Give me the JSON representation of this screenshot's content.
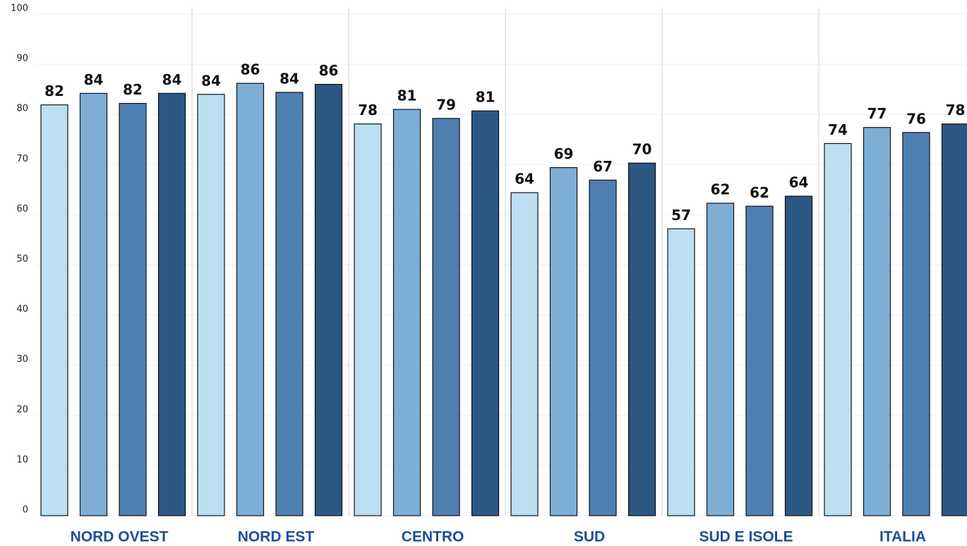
{
  "chart_data": {
    "type": "bar",
    "categories": [
      "NORD OVEST",
      "NORD EST",
      "CENTRO",
      "SUD",
      "SUD E ISOLE",
      "ITALIA"
    ],
    "series": [
      {
        "color": "#bcdff2",
        "values": [
          81.9,
          84.0,
          78.1,
          64.4,
          57.2,
          74.2
        ],
        "value_labels": [
          "82",
          "84",
          "78",
          "64",
          "57",
          "74"
        ]
      },
      {
        "color": "#7eaed6",
        "values": [
          84.2,
          86.2,
          81.0,
          69.4,
          62.3,
          77.4
        ],
        "value_labels": [
          "84",
          "86",
          "81",
          "69",
          "62",
          "77"
        ]
      },
      {
        "color": "#4f7fb0",
        "values": [
          82.2,
          84.4,
          79.2,
          66.9,
          61.7,
          76.4
        ],
        "value_labels": [
          "82",
          "84",
          "79",
          "67",
          "62",
          "76"
        ]
      },
      {
        "color": "#2b5783",
        "values": [
          84.2,
          86.0,
          80.7,
          70.3,
          63.7,
          78.1
        ],
        "value_labels": [
          "84",
          "86",
          "81",
          "70",
          "64",
          "78"
        ]
      }
    ],
    "ylim": [
      0,
      100
    ],
    "yticks": [
      0,
      10,
      20,
      30,
      40,
      50,
      60,
      70,
      80,
      90,
      100
    ],
    "grid": true
  }
}
